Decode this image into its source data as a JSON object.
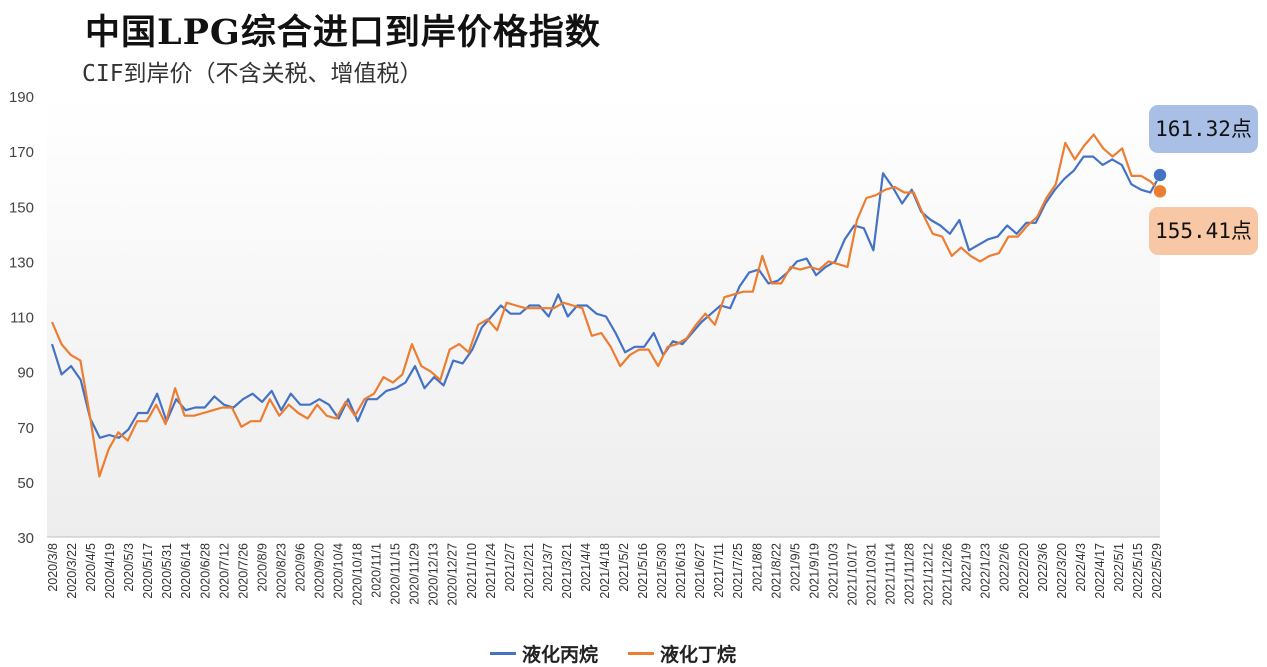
{
  "title": "中国LPG综合进口到岸价格指数",
  "subtitle": "CIF到岸价（不含关税、增值税）",
  "callouts": {
    "propane_last": "161.32点",
    "butane_last": "155.41点"
  },
  "colors": {
    "propane": "#4472c4",
    "butane": "#ed7d31",
    "plot_top": "#ffffff",
    "plot_bottom": "#ededed"
  },
  "chart_data": {
    "type": "line",
    "ylim": [
      30,
      190
    ],
    "yticks": [
      30,
      50,
      70,
      90,
      110,
      130,
      150,
      170,
      190
    ],
    "xtick_labels": [
      "2020/3/8",
      "2020/3/22",
      "2020/4/5",
      "2020/4/19",
      "2020/5/3",
      "2020/5/17",
      "2020/5/31",
      "2020/6/14",
      "2020/6/28",
      "2020/7/12",
      "2020/7/26",
      "2020/8/9",
      "2020/8/23",
      "2020/9/6",
      "2020/9/20",
      "2020/10/4",
      "2020/10/18",
      "2020/11/1",
      "2020/11/15",
      "2020/11/29",
      "2020/12/13",
      "2020/12/27",
      "2021/1/10",
      "2021/1/24",
      "2021/2/7",
      "2021/2/21",
      "2021/3/7",
      "2021/3/21",
      "2021/4/4",
      "2021/4/18",
      "2021/5/2",
      "2021/5/16",
      "2021/5/30",
      "2021/6/13",
      "2021/6/27",
      "2021/7/11",
      "2021/7/25",
      "2021/8/8",
      "2021/8/22",
      "2021/9/5",
      "2021/9/19",
      "2021/10/3",
      "2021/10/17",
      "2021/10/31",
      "2021/11/14",
      "2021/11/28",
      "2021/12/12",
      "2021/12/26",
      "2022/1/9",
      "2022/1/23",
      "2022/2/6",
      "2022/2/20",
      "2022/3/6",
      "2022/3/20",
      "2022/4/3",
      "2022/4/17",
      "2022/5/1",
      "2022/5/15",
      "2022/5/29"
    ],
    "legend_position": "bottom",
    "series": [
      {
        "name": "液化丙烷",
        "values": [
          100,
          89,
          92,
          87,
          73,
          66,
          67,
          66,
          69,
          75,
          75,
          82,
          72,
          80,
          76,
          77,
          77,
          81,
          78,
          77,
          80,
          82,
          79,
          83,
          76,
          82,
          78,
          78,
          80,
          78,
          73,
          80,
          72,
          80,
          80,
          83,
          84,
          86,
          92,
          84,
          88,
          85,
          94,
          93,
          98,
          106,
          110,
          114,
          111,
          111,
          114,
          114,
          110,
          118,
          110,
          114,
          114,
          111,
          110,
          104,
          97,
          99,
          99,
          104,
          96,
          101,
          100,
          104,
          108,
          111,
          114,
          113,
          121,
          126,
          127,
          122,
          123,
          126,
          130,
          131,
          125,
          128,
          130,
          138,
          143,
          142,
          134,
          162,
          157,
          151,
          156,
          148,
          145,
          143,
          140,
          145,
          134,
          136,
          138,
          139,
          143,
          140,
          144,
          144,
          151,
          156,
          160,
          163,
          168,
          168,
          165,
          167,
          165,
          158,
          156,
          155,
          161.32
        ],
        "color": "#4472c4"
      },
      {
        "name": "液化丁烷",
        "values": [
          108,
          100,
          96,
          94,
          74,
          52,
          62,
          68,
          65,
          72,
          72,
          78,
          71,
          84,
          74,
          74,
          75,
          76,
          77,
          77,
          70,
          72,
          72,
          80,
          74,
          78,
          75,
          73,
          78,
          74,
          73,
          79,
          74,
          80,
          82,
          88,
          86,
          89,
          100,
          92,
          90,
          87,
          98,
          100,
          97,
          107,
          109,
          105,
          115,
          114,
          113,
          113,
          113,
          113,
          115,
          114,
          113,
          103,
          104,
          99,
          92,
          96,
          98,
          98,
          92,
          99,
          100,
          102,
          107,
          111,
          107,
          117,
          118,
          119,
          119,
          132,
          122,
          122,
          128,
          127,
          128,
          127,
          130,
          129,
          128,
          145,
          153,
          154,
          156,
          157,
          155,
          155,
          147,
          140,
          139,
          132,
          135,
          132,
          130,
          132,
          133,
          139,
          139,
          143,
          146,
          153,
          158,
          173,
          167,
          172,
          176,
          171,
          168,
          171,
          161,
          161,
          159,
          155.41
        ],
        "color": "#ed7d31"
      }
    ]
  }
}
